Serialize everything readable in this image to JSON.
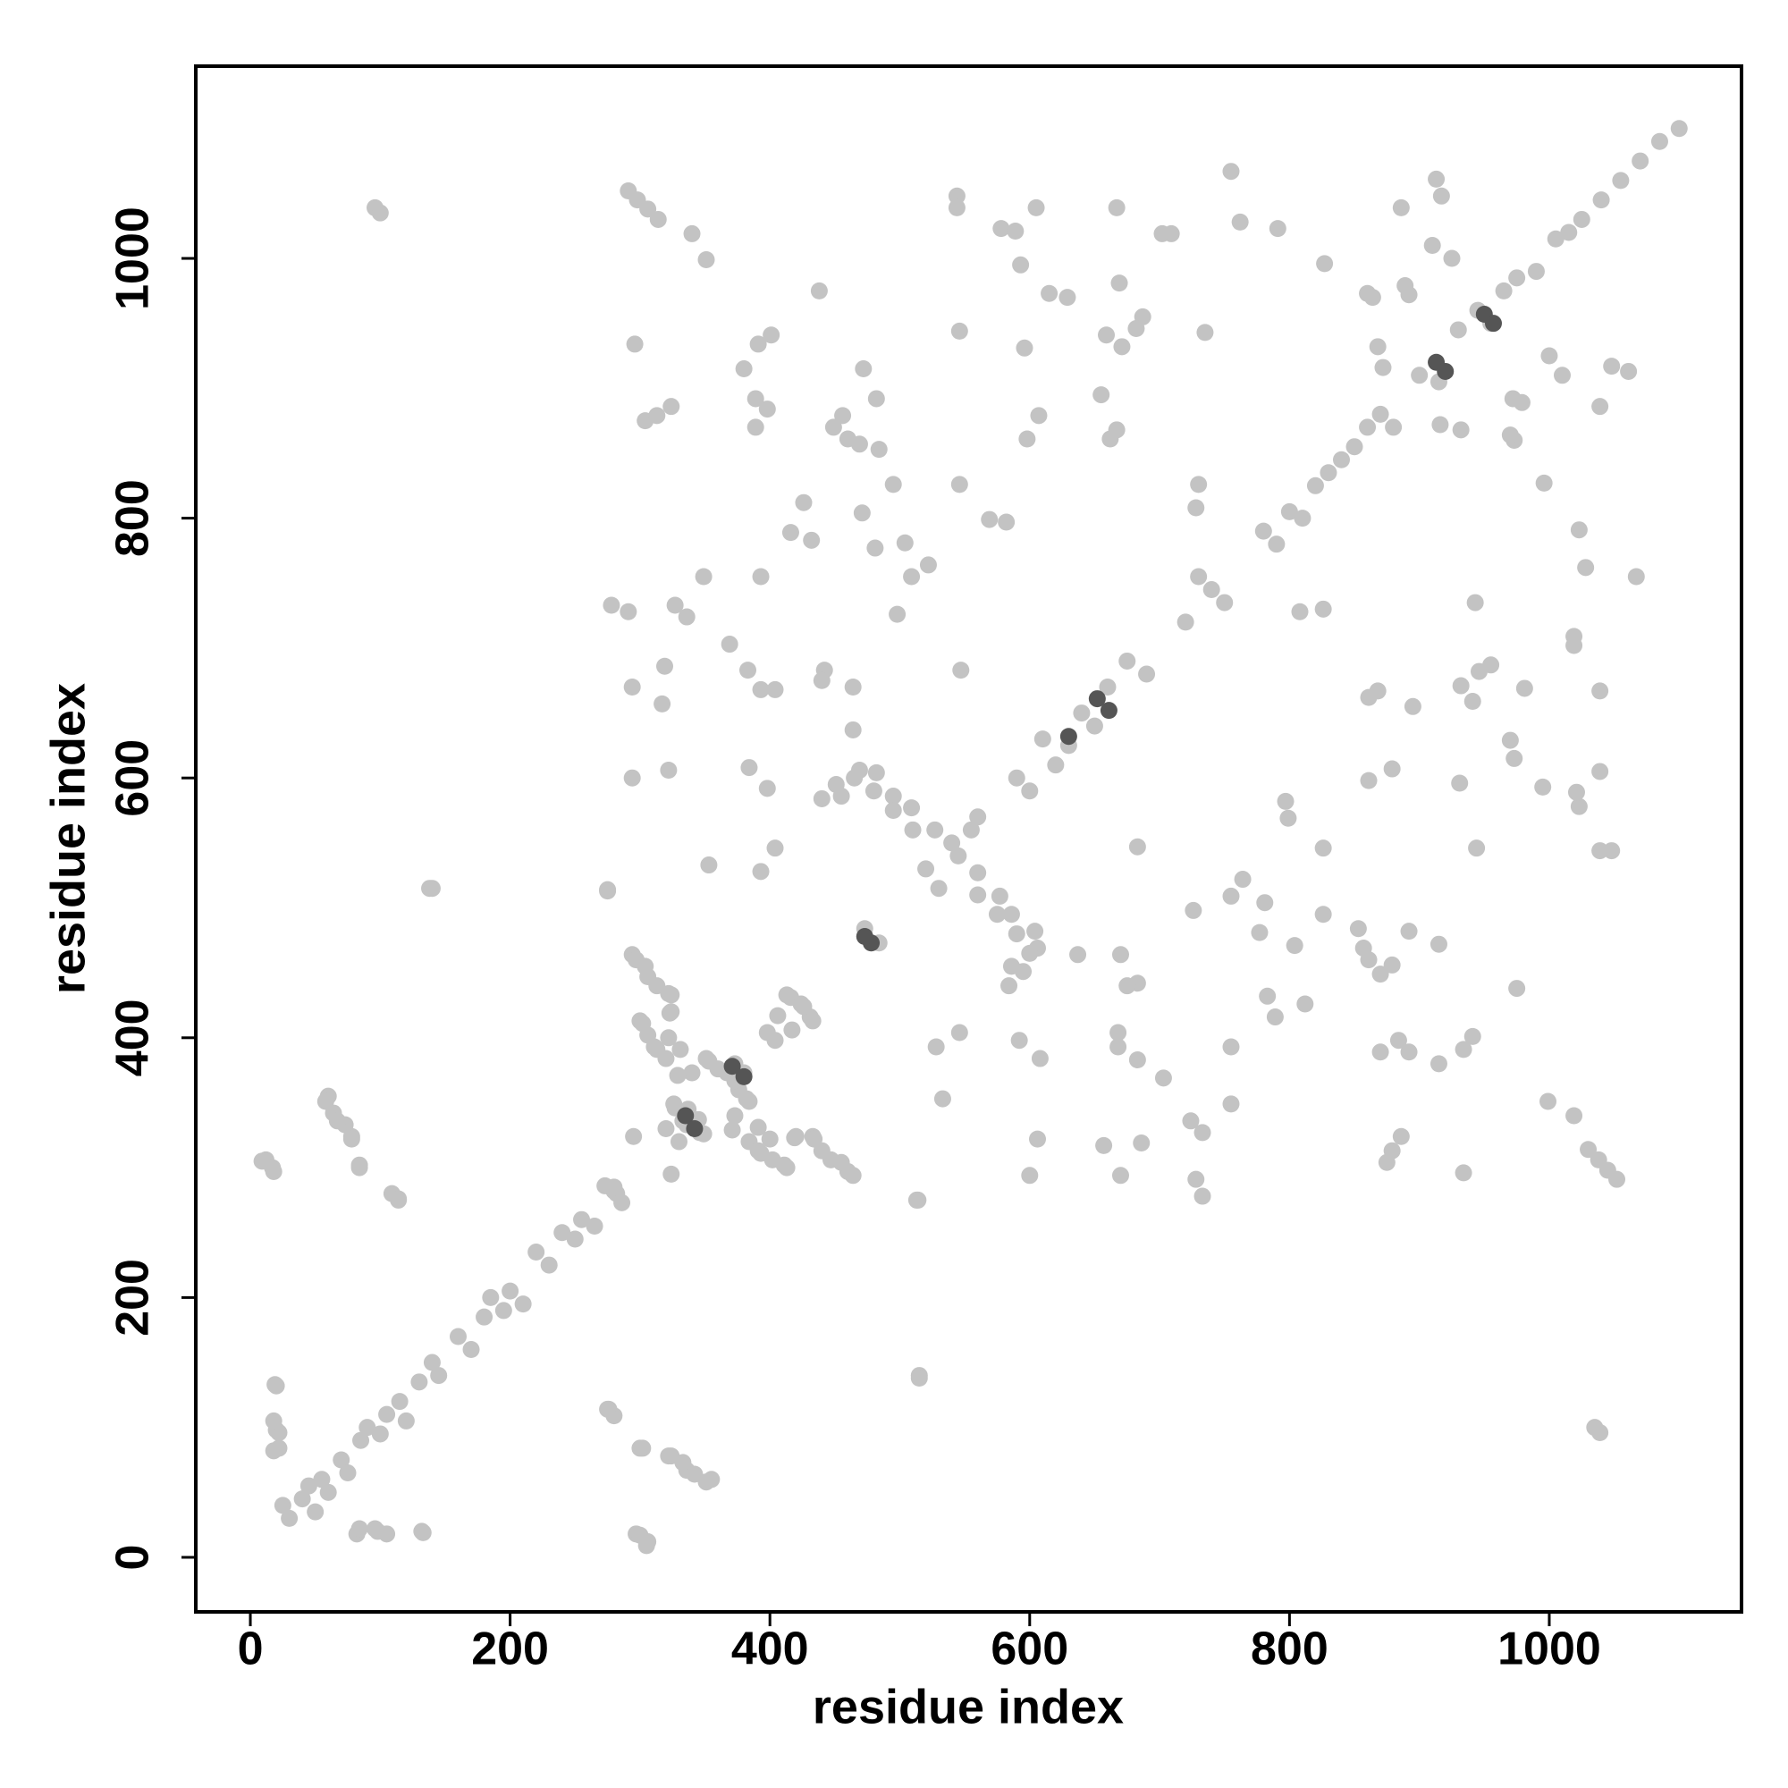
{
  "chart_data": {
    "type": "scatter",
    "xlabel": "residue index",
    "ylabel": "residue index",
    "xlim": [
      -42,
      1148
    ],
    "ylim": [
      -42,
      1148
    ],
    "xticks": [
      0,
      200,
      400,
      600,
      800,
      1000
    ],
    "yticks": [
      0,
      200,
      400,
      600,
      800,
      1000
    ],
    "grid": false,
    "series": [
      {
        "color": "#c3c3c3",
        "x": [
          96,
          100,
          291,
          298,
          306,
          314,
          340,
          351,
          296,
          304,
          313,
          324,
          278,
          291,
          327,
          336,
          349,
          294,
          319,
          317,
          322,
          294,
          369,
          383,
          384,
          398,
          393,
          404,
          380,
          391,
          401,
          389,
          389,
          398,
          438,
          426,
          432,
          416,
          393,
          449,
          460,
          469,
          472,
          482,
          456,
          442,
          464,
          464,
          440,
          451,
          469,
          455,
          440,
          471,
          481,
          484,
          495,
          504,
          498,
          509,
          522,
          482,
          495,
          509,
          527,
          544,
          544,
          546,
          546,
          547,
          569,
          582,
          578,
          589,
          593,
          596,
          598,
          607,
          605,
          615,
          629,
          667,
          669,
          671,
          655,
          667,
          662,
          659,
          702,
          709,
          687,
          682,
          735,
          730,
          728,
          755,
          762,
          791,
          827,
          860,
          864,
          868,
          872,
          889,
          892,
          886,
          913,
          917,
          60,
          64,
          73,
          78,
          84,
          12,
          17,
          109,
          114,
          138,
          273,
          282,
          276,
          300,
          322,
          336,
          351,
          297,
          305,
          96,
          105,
          132,
          82,
          514,
          515,
          275,
          294,
          304,
          313,
          322,
          300,
          322,
          313,
          323,
          331,
          340,
          327,
          336,
          345,
          349,
          324,
          353,
          367,
          380,
          376,
          384,
          371,
          384,
          393,
          402,
          411,
          420,
          433,
          447,
          460,
          398,
          406,
          416,
          424,
          433,
          404,
          393,
          353,
          473,
          19,
          20,
          22,
          465,
          480,
          495,
          510,
          910,
          925,
          1039,
          1035,
          1052,
          1045,
          1038,
          1030,
          1019,
          999,
          934,
          875,
          879,
          886,
          733,
          728,
          733,
          724,
          755,
          670,
          686,
          657,
          606,
          600,
          703,
          683,
          608,
          592,
          668,
          668,
          915,
          934,
          941,
          892,
          870,
          884,
          975,
          812,
          783,
          789,
          755,
          870,
          861,
          857,
          915,
          892,
          879,
          683,
          670,
          637,
          675,
          595,
          606,
          586,
          584,
          804,
          777,
          853,
          826,
          781,
          726,
          755,
          764,
          604,
          586,
          577,
          560,
          1048,
          1039,
          944,
          826,
          683,
          799,
          797,
          1023,
          1021,
          995,
          931,
          861,
          879,
          1039,
          973,
          970,
          1039,
          981,
          932,
          895,
          868,
          861,
          941,
          1019,
          1019,
          955,
          946,
          943,
          826,
          808,
          1067,
          1028,
          1023,
          996,
          973,
          970,
          932,
          916,
          979,
          972,
          1039,
          1061,
          1048,
          355,
          342,
          333,
          324,
          302,
          306,
          300,
          280,
          275,
          515,
          286,
          280,
          114,
          84,
          78,
          67,
          58,
          18,
          9,
          22,
          18,
          20,
          18,
          275,
          140,
          513,
          464,
          455,
          440,
          434,
          413,
          400,
          391,
          419,
          391,
          373,
          346,
          333,
          337,
          326,
          295,
          382,
          373,
          373,
          360,
          351,
          329,
          320,
          311,
          306,
          302,
          324,
          324,
          306,
          297,
          404,
          417,
          431,
          426,
          413,
          546,
          528,
          533,
          484,
          133,
          98,
          84,
          600,
          590,
          575,
          560,
          1010,
          1000,
          25,
          30,
          40,
          45,
          50,
          55,
          60,
          70,
          75,
          85,
          90,
          100,
          105,
          115,
          120,
          130,
          140,
          145,
          160,
          170,
          180,
          185,
          195,
          200,
          210,
          220,
          230,
          240,
          250,
          255,
          265,
          280,
          545,
          540,
          520,
          530,
          555,
          560,
          590,
          600,
          610,
          620,
          630,
          640,
          650,
          660,
          675,
          690,
          720,
          730,
          740,
          750,
          780,
          790,
          800,
          810,
          820,
          830,
          840,
          850,
          860,
          870,
          880,
          900,
          915,
          930,
          945,
          955,
          965,
          975,
          990,
          1005,
          1015,
          1025,
          1040,
          1055,
          1070,
          1085,
          1100,
          320,
          330
        ],
        "y": [
          1039,
          1035,
          1052,
          1045,
          1038,
          1030,
          1019,
          999,
          934,
          875,
          879,
          886,
          733,
          728,
          733,
          724,
          755,
          670,
          686,
          657,
          606,
          600,
          703,
          683,
          608,
          592,
          668,
          668,
          915,
          934,
          941,
          892,
          870,
          884,
          975,
          812,
          783,
          789,
          755,
          870,
          861,
          857,
          915,
          892,
          879,
          683,
          670,
          637,
          675,
          595,
          606,
          586,
          584,
          804,
          777,
          853,
          826,
          781,
          726,
          755,
          764,
          604,
          586,
          577,
          560,
          1048,
          1039,
          944,
          826,
          683,
          799,
          797,
          1023,
          1021,
          995,
          931,
          861,
          879,
          1039,
          973,
          970,
          1039,
          981,
          932,
          895,
          868,
          861,
          941,
          1019,
          1019,
          955,
          946,
          943,
          826,
          808,
          1067,
          1028,
          1023,
          996,
          973,
          970,
          932,
          916,
          979,
          972,
          1039,
          1061,
          1048,
          355,
          342,
          333,
          324,
          302,
          306,
          300,
          280,
          275,
          515,
          286,
          280,
          114,
          84,
          78,
          67,
          58,
          18,
          9,
          22,
          18,
          20,
          18,
          275,
          140,
          513,
          464,
          455,
          440,
          434,
          413,
          400,
          391,
          419,
          391,
          373,
          346,
          333,
          337,
          326,
          295,
          382,
          373,
          373,
          360,
          351,
          329,
          320,
          311,
          306,
          302,
          324,
          324,
          306,
          297,
          404,
          417,
          431,
          426,
          413,
          546,
          528,
          533,
          484,
          133,
          98,
          84,
          600,
          590,
          575,
          560,
          1010,
          1000,
          96,
          100,
          291,
          298,
          306,
          314,
          340,
          351,
          296,
          304,
          313,
          324,
          278,
          291,
          327,
          336,
          349,
          294,
          319,
          317,
          322,
          294,
          369,
          383,
          384,
          398,
          393,
          404,
          380,
          391,
          401,
          389,
          389,
          398,
          438,
          426,
          432,
          416,
          393,
          449,
          460,
          469,
          472,
          482,
          456,
          442,
          464,
          464,
          440,
          451,
          469,
          455,
          440,
          471,
          481,
          484,
          495,
          504,
          498,
          509,
          522,
          482,
          495,
          509,
          527,
          544,
          544,
          546,
          546,
          547,
          569,
          582,
          578,
          589,
          593,
          596,
          598,
          607,
          605,
          615,
          629,
          667,
          669,
          671,
          655,
          667,
          662,
          659,
          702,
          709,
          687,
          682,
          735,
          730,
          728,
          755,
          762,
          791,
          827,
          860,
          864,
          868,
          872,
          889,
          892,
          886,
          913,
          917,
          60,
          64,
          73,
          78,
          84,
          12,
          17,
          109,
          114,
          138,
          273,
          282,
          276,
          300,
          322,
          336,
          351,
          297,
          305,
          96,
          105,
          132,
          82,
          514,
          515,
          275,
          294,
          304,
          313,
          322,
          300,
          322,
          313,
          323,
          331,
          340,
          327,
          336,
          345,
          349,
          324,
          353,
          367,
          380,
          376,
          384,
          371,
          384,
          393,
          402,
          411,
          420,
          433,
          447,
          460,
          398,
          406,
          416,
          424,
          433,
          404,
          393,
          353,
          473,
          19,
          20,
          22,
          465,
          480,
          495,
          510,
          910,
          925,
          40,
          30,
          45,
          55,
          35,
          60,
          50,
          75,
          65,
          90,
          100,
          95,
          110,
          120,
          105,
          135,
          150,
          140,
          170,
          160,
          185,
          200,
          190,
          205,
          195,
          235,
          225,
          250,
          245,
          260,
          255,
          285,
          540,
          550,
          530,
          515,
          560,
          570,
          600,
          590,
          630,
          610,
          625,
          650,
          640,
          670,
          690,
          680,
          720,
          755,
          745,
          735,
          790,
          780,
          805,
          800,
          825,
          835,
          845,
          855,
          870,
          880,
          870,
          910,
          905,
          945,
          960,
          950,
          975,
          985,
          990,
          1015,
          1020,
          1030,
          1045,
          1060,
          1075,
          1090,
          1100,
          330,
          320
        ]
      },
      {
        "color": "#555555",
        "x": [
          371,
          380,
          335,
          342,
          913,
          920,
          950,
          957,
          630,
          661,
          652,
          478,
          473
        ],
        "y": [
          378,
          370,
          340,
          330,
          920,
          913,
          957,
          950,
          632,
          652,
          661,
          473,
          478
        ]
      }
    ]
  }
}
